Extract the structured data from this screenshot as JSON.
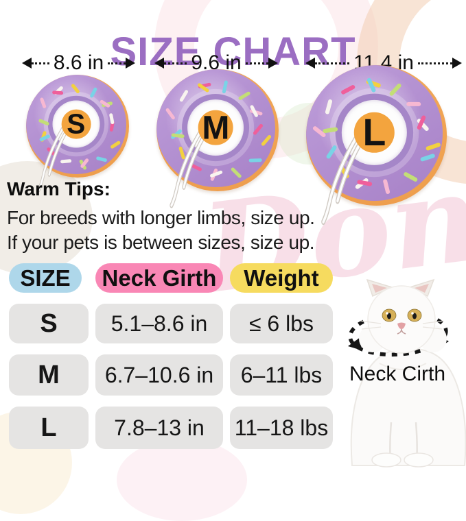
{
  "title": "SIZE CHART",
  "donuts": [
    {
      "letter": "S",
      "diameter_label": "8.6 in"
    },
    {
      "letter": "M",
      "diameter_label": "9.6 in"
    },
    {
      "letter": "L",
      "diameter_label": "11.4 in"
    }
  ],
  "sprinkle_colors": [
    "#ef5f9b",
    "#f2d13f",
    "#79d3e6",
    "#c3de76",
    "#f7b8d2",
    "#f8f4ef"
  ],
  "warm_tips": {
    "heading": "Warm Tips:",
    "lines": [
      "For breeds with longer limbs, size up.",
      "If your pets is between sizes, size up."
    ]
  },
  "size_table": {
    "headers": [
      "SIZE",
      "Neck Girth",
      "Weight"
    ],
    "rows": [
      {
        "size": "S",
        "neck_girth": "5.1–8.6 in",
        "weight": "≤ 6 lbs"
      },
      {
        "size": "M",
        "neck_girth": "6.7–10.6 in",
        "weight": "6–11 lbs"
      },
      {
        "size": "L",
        "neck_girth": "7.8–13 in",
        "weight": "11–18 lbs"
      }
    ]
  },
  "cat": {
    "annotation": "Neck Cirth"
  },
  "watermark_text": "Donuts",
  "colors": {
    "title_purple": "#9b6ec2",
    "pill_blue": "#aed7ea",
    "pill_pink": "#f987b5",
    "pill_yellow": "#f6db5f",
    "cell_gray": "#e5e4e3",
    "donut_purple": "#b48ed4",
    "donut_glaze_orange": "#efa04e",
    "donut_disc_orange": "#f3a43e"
  }
}
